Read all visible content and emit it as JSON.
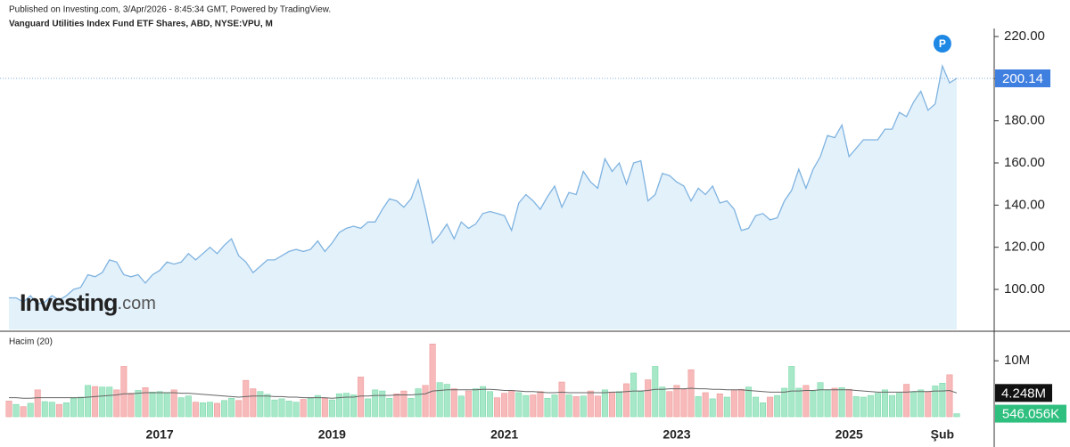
{
  "header": {
    "published": "Published on Investing.com, 3/Apr/2026 - 8:45:34 GMT, Powered by TradingView.",
    "instrument": "Vanguard Utilities Index Fund ETF Shares, ABD, NYSE:VPU, M"
  },
  "logo": {
    "name": "Investing",
    "suffix": ".com"
  },
  "chart_data": [
    {
      "type": "area",
      "color": "#7fb3e0",
      "fill": "#e3f1fb",
      "ylim": [
        81,
        223.8
      ],
      "yticks": [
        {
          "value": 100,
          "label": "100.00"
        },
        {
          "value": 120,
          "label": "120.00"
        },
        {
          "value": 140,
          "label": "140.00"
        },
        {
          "value": 160,
          "label": "160.00"
        },
        {
          "value": 180,
          "label": "180.00"
        },
        {
          "value": 200,
          "label": "200.00"
        },
        {
          "value": 220,
          "label": "220.00"
        }
      ],
      "values": [
        96,
        96,
        94,
        97,
        93,
        94,
        97,
        95,
        97,
        100,
        101,
        107,
        106,
        108,
        114,
        113,
        107,
        106,
        107,
        103,
        107,
        109,
        113,
        112,
        113,
        117,
        114,
        117,
        120,
        117,
        121,
        124,
        116,
        113,
        108,
        111,
        114,
        114,
        116,
        118,
        119,
        118,
        119,
        123,
        118,
        122,
        127,
        129,
        130,
        129,
        132,
        132,
        138,
        143,
        142,
        139,
        143,
        152,
        138,
        122,
        126,
        131,
        124,
        132,
        129,
        131,
        136,
        137,
        136,
        135,
        128,
        141,
        145,
        142,
        138,
        144,
        149,
        139,
        146,
        145,
        156,
        151,
        148,
        162,
        156,
        160,
        150,
        160,
        161,
        142,
        145,
        155,
        154,
        151,
        149,
        142,
        148,
        145,
        149,
        141,
        142,
        138,
        128,
        129,
        135,
        136,
        133,
        134,
        142,
        147,
        157,
        148,
        157,
        163,
        173,
        172,
        178,
        163,
        167,
        171,
        171,
        171,
        176,
        176,
        184,
        182,
        189,
        194,
        185,
        188,
        206,
        198,
        200.14
      ],
      "current_label": "200.14",
      "current_color": "#3f7fe0",
      "event_label": "P",
      "event_color": "#1e88e5"
    },
    {
      "type": "bar",
      "title": "Hacim (20)",
      "up_color": "#a6e8c8",
      "down_color": "#f7b9b9",
      "ylim": [
        0,
        14.8
      ],
      "yticks": [
        {
          "value": 10,
          "label": "10M"
        }
      ],
      "categories": [
        null,
        null,
        null,
        null,
        null,
        null,
        null,
        null,
        null,
        null,
        null,
        null,
        null,
        null,
        null,
        null,
        null,
        null,
        null,
        null,
        null,
        "2017",
        null,
        null,
        null,
        null,
        null,
        null,
        null,
        null,
        null,
        null,
        null,
        null,
        null,
        null,
        null,
        null,
        null,
        null,
        null,
        null,
        null,
        null,
        null,
        "2019",
        null,
        null,
        null,
        null,
        null,
        null,
        null,
        null,
        null,
        null,
        null,
        null,
        null,
        null,
        null,
        null,
        null,
        null,
        null,
        null,
        null,
        null,
        null,
        "2021",
        null,
        null,
        null,
        null,
        null,
        null,
        null,
        null,
        null,
        null,
        null,
        null,
        null,
        null,
        null,
        null,
        null,
        null,
        null,
        null,
        null,
        null,
        null,
        "2023",
        null,
        null,
        null,
        null,
        null,
        null,
        null,
        null,
        null,
        null,
        null,
        null,
        null,
        null,
        null,
        null,
        null,
        null,
        null,
        null,
        null,
        null,
        null,
        "2025",
        null,
        null,
        null,
        null,
        null,
        null,
        null,
        null,
        null,
        null,
        null,
        null,
        "Şub",
        null,
        null
      ],
      "values": [
        2.8,
        2.2,
        1.8,
        2.4,
        4.8,
        2.7,
        2.6,
        2.2,
        2.5,
        3.3,
        3.5,
        5.6,
        5.4,
        5.3,
        5.3,
        4.8,
        9.0,
        4.2,
        4.7,
        5.2,
        4.4,
        4.5,
        4.3,
        4.8,
        3.4,
        3.7,
        2.6,
        2.5,
        2.6,
        2.4,
        2.9,
        3.3,
        2.9,
        6.5,
        5.0,
        4.5,
        4.0,
        3.0,
        3.2,
        2.8,
        2.6,
        3.1,
        3.3,
        3.8,
        3.3,
        3.0,
        4.1,
        4.2,
        3.9,
        7.1,
        3.2,
        4.8,
        4.6,
        3.3,
        4.1,
        4.6,
        3.3,
        5.0,
        5.6,
        13.0,
        6.1,
        5.8,
        5.0,
        3.7,
        4.6,
        5.0,
        5.4,
        4.5,
        3.4,
        4.2,
        4.7,
        4.3,
        3.8,
        3.9,
        4.5,
        3.3,
        3.9,
        6.2,
        3.9,
        3.6,
        3.7,
        4.6,
        3.7,
        4.8,
        4.4,
        4.5,
        5.9,
        7.8,
        4.5,
        6.6,
        9.0,
        5.3,
        4.5,
        5.6,
        4.9,
        8.4,
        3.6,
        4.3,
        3.2,
        4.1,
        3.5,
        4.8,
        4.9,
        5.3,
        3.5,
        2.5,
        3.5,
        3.8,
        5.1,
        9.0,
        5.1,
        5.6,
        4.6,
        6.1,
        4.8,
        5.1,
        5.2,
        4.9,
        3.6,
        3.5,
        3.8,
        4.2,
        4.8,
        3.8,
        4.2,
        5.8,
        4.4,
        4.8,
        4.5,
        5.5,
        6.0,
        7.5,
        0.546056
      ],
      "current_label": "546.056K",
      "current_color": "#2fbf7f",
      "ma": {
        "color": "#666666",
        "current_label": "4.248M",
        "current_color": "#111111",
        "values": [
          3.4,
          3.4,
          3.3,
          3.3,
          3.4,
          3.4,
          3.4,
          3.4,
          3.4,
          3.4,
          3.4,
          3.5,
          3.6,
          3.7,
          3.8,
          3.9,
          4.1,
          4.1,
          4.2,
          4.3,
          4.3,
          4.3,
          4.3,
          4.3,
          4.2,
          4.2,
          4.1,
          4.0,
          3.9,
          3.8,
          3.7,
          3.6,
          3.5,
          3.6,
          3.7,
          3.7,
          3.7,
          3.6,
          3.6,
          3.5,
          3.5,
          3.4,
          3.4,
          3.4,
          3.4,
          3.3,
          3.4,
          3.5,
          3.5,
          3.7,
          3.7,
          3.8,
          3.8,
          3.8,
          3.9,
          3.9,
          3.9,
          4.0,
          4.1,
          4.6,
          4.7,
          4.8,
          4.8,
          4.8,
          4.8,
          4.8,
          4.9,
          4.9,
          4.8,
          4.7,
          4.7,
          4.6,
          4.5,
          4.5,
          4.4,
          4.3,
          4.3,
          4.4,
          4.3,
          4.3,
          4.3,
          4.3,
          4.3,
          4.3,
          4.4,
          4.4,
          4.5,
          4.6,
          4.6,
          4.7,
          4.9,
          4.9,
          5.0,
          5.0,
          5.0,
          5.1,
          5.0,
          5.0,
          4.9,
          4.9,
          4.8,
          4.8,
          4.8,
          4.7,
          4.6,
          4.5,
          4.4,
          4.4,
          4.4,
          4.6,
          4.6,
          4.7,
          4.7,
          4.8,
          4.8,
          4.8,
          4.8,
          4.8,
          4.7,
          4.6,
          4.5,
          4.4,
          4.4,
          4.4,
          4.4,
          4.4,
          4.5,
          4.5,
          4.5,
          4.6,
          4.6,
          4.7,
          4.248
        ]
      }
    }
  ]
}
